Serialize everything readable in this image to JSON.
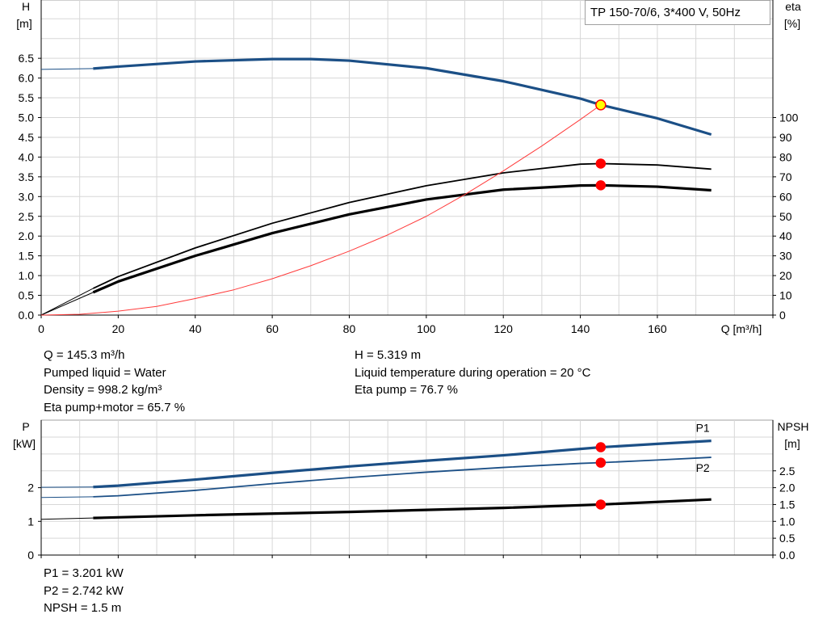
{
  "chart_data": [
    {
      "type": "line",
      "title": "TP 150-70/6, 3*400 V, 50Hz",
      "xlabel": "Q [m³/h]",
      "ylabel": [
        "H",
        "[m]"
      ],
      "y2label": [
        "eta",
        "[%]"
      ],
      "xlim": [
        0,
        190
      ],
      "ylim": [
        0,
        8
      ],
      "y2lim": [
        0,
        160
      ],
      "grid": true,
      "x_ticks": [
        "0",
        "20",
        "40",
        "60",
        "80",
        "100",
        "120",
        "140",
        "160"
      ],
      "y_ticks": [
        "0.0",
        "0.5",
        "1.0",
        "1.5",
        "2.0",
        "2.5",
        "3.0",
        "3.5",
        "4.0",
        "4.5",
        "5.0",
        "5.5",
        "6.0",
        "6.5"
      ],
      "y2_ticks": [
        "0",
        "10",
        "20",
        "30",
        "40",
        "50",
        "60",
        "70",
        "80",
        "90",
        "100"
      ],
      "series": [
        {
          "role": "H",
          "axis": "left",
          "color": "#1b4f86",
          "x": [
            13.5,
            20,
            40,
            60,
            70,
            80,
            100,
            120,
            140,
            145.3,
            160,
            174
          ],
          "y": [
            6.24,
            6.29,
            6.42,
            6.48,
            6.48,
            6.44,
            6.25,
            5.92,
            5.48,
            5.32,
            4.98,
            4.57
          ],
          "lead": {
            "x": [
              0,
              13.5
            ],
            "y": [
              6.22,
              6.24
            ]
          }
        },
        {
          "role": "eta pump",
          "axis": "right",
          "color": "#000000",
          "width": 1.8,
          "x": [
            13.5,
            20,
            40,
            60,
            80,
            100,
            120,
            140,
            145.3,
            160,
            174
          ],
          "y": [
            13.5,
            19.5,
            34,
            46.5,
            57,
            65.5,
            72,
            76.4,
            76.7,
            76,
            73.9
          ],
          "lead": {
            "x": [
              0,
              13.5
            ],
            "y": [
              0,
              13.5
            ]
          }
        },
        {
          "role": "eta pump+motor",
          "axis": "right",
          "color": "#000000",
          "width": 3.2,
          "x": [
            13.5,
            20,
            40,
            60,
            80,
            100,
            120,
            140,
            145.3,
            160,
            174
          ],
          "y": [
            11.5,
            17,
            30,
            41.5,
            51,
            58.5,
            63.5,
            65.6,
            65.7,
            65,
            63.2
          ],
          "lead": {
            "x": [
              0,
              13.5
            ],
            "y": [
              0,
              11.5
            ]
          }
        },
        {
          "role": "system curve",
          "axis": "left",
          "color": "#ff3b3b",
          "width": 1,
          "x": [
            0,
            10,
            20,
            30,
            40,
            50,
            60,
            70,
            80,
            90,
            100,
            110,
            120,
            130,
            140,
            145.3
          ],
          "y": [
            0,
            0.02,
            0.1,
            0.22,
            0.42,
            0.64,
            0.92,
            1.25,
            1.62,
            2.03,
            2.5,
            3.05,
            3.65,
            4.28,
            4.95,
            5.32
          ]
        }
      ],
      "points": [
        {
          "role": "duty point",
          "axis": "left",
          "x": 145.3,
          "y": 5.319,
          "fill": "#ffff00",
          "stroke": "#ff0000"
        },
        {
          "role": "eta pump point",
          "axis": "right",
          "x": 145.3,
          "y": 76.7,
          "fill": "#ff0000",
          "stroke": "#ff0000"
        },
        {
          "role": "eta pump+motor point",
          "axis": "right",
          "x": 145.3,
          "y": 65.7,
          "fill": "#ff0000",
          "stroke": "#ff0000"
        }
      ]
    },
    {
      "type": "line",
      "ylabel": [
        "P",
        "[kW]"
      ],
      "y2label": [
        "NPSH",
        "[m]"
      ],
      "xlim": [
        0,
        190
      ],
      "ylim": [
        0,
        3.5
      ],
      "y2lim": [
        0,
        3.5
      ],
      "grid": true,
      "y_ticks": [
        "0",
        "1",
        "2"
      ],
      "y2_ticks": [
        "0.0",
        "0.5",
        "1.0",
        "1.5",
        "2.0",
        "2.5"
      ],
      "series": [
        {
          "name": "P1",
          "axis": "left",
          "color": "#1b4f86",
          "width": 3.2,
          "x": [
            13.5,
            20,
            40,
            60,
            80,
            100,
            120,
            140,
            145.3,
            160,
            174
          ],
          "y": [
            2.02,
            2.06,
            2.24,
            2.44,
            2.63,
            2.8,
            2.96,
            3.15,
            3.2,
            3.3,
            3.39
          ],
          "lead": {
            "x": [
              0,
              13.5
            ],
            "y": [
              2.01,
              2.02
            ]
          }
        },
        {
          "name": "P2",
          "axis": "left",
          "color": "#1b4f86",
          "width": 1.8,
          "x": [
            13.5,
            20,
            40,
            60,
            80,
            100,
            120,
            140,
            145.3,
            160,
            174
          ],
          "y": [
            1.73,
            1.76,
            1.92,
            2.12,
            2.3,
            2.46,
            2.6,
            2.72,
            2.742,
            2.82,
            2.9
          ],
          "lead": {
            "x": [
              0,
              13.5
            ],
            "y": [
              1.71,
              1.73
            ]
          }
        },
        {
          "role": "NPSH",
          "axis": "right",
          "color": "#000000",
          "width": 3.2,
          "x": [
            13.5,
            40,
            80,
            120,
            145.3,
            174
          ],
          "y": [
            1.1,
            1.18,
            1.28,
            1.4,
            1.5,
            1.65
          ],
          "lead": {
            "x": [
              0,
              13.5
            ],
            "y": [
              1.06,
              1.1
            ]
          }
        }
      ],
      "points": [
        {
          "role": "P1 point",
          "axis": "left",
          "x": 145.3,
          "y": 3.201,
          "fill": "#ff0000"
        },
        {
          "role": "P2 point",
          "axis": "left",
          "x": 145.3,
          "y": 2.742,
          "fill": "#ff0000"
        },
        {
          "role": "NPSH point",
          "axis": "right",
          "x": 145.3,
          "y": 1.5,
          "fill": "#ff0000"
        }
      ]
    }
  ],
  "info_top": {
    "left": [
      "Q = 145.3 m³/h",
      "Pumped liquid = Water",
      "Density = 998.2 kg/m³",
      "Eta pump+motor = 65.7 %"
    ],
    "right": [
      "H = 5.319 m",
      "Liquid temperature during operation = 20 °C",
      "Eta pump = 76.7 %"
    ]
  },
  "info_bottom": [
    "P1 = 3.201 kW",
    "P2 = 2.742 kW",
    "NPSH = 1.5 m"
  ]
}
